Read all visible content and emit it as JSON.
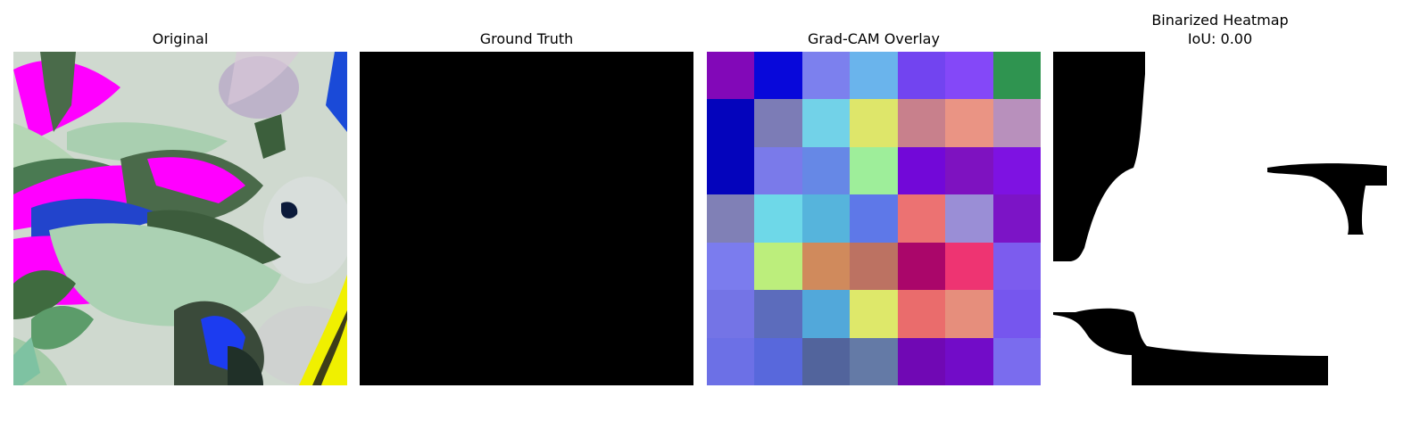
{
  "panels": {
    "original": {
      "title": "Original"
    },
    "ground_truth": {
      "title": "Ground Truth"
    },
    "gradcam": {
      "title": "Grad-CAM Overlay",
      "cells": [
        [
          "#8208b8",
          "#0808da",
          "#7c80ee",
          "#6ab4ec",
          "#7244f0",
          "#8448f8",
          "#2f9450"
        ],
        [
          "#0404bc",
          "#7c7cb6",
          "#72d2e8",
          "#dee66a",
          "#c8808c",
          "#ea9484",
          "#b890bc"
        ],
        [
          "#0404bc",
          "#7a7aea",
          "#6688e6",
          "#9eee9a",
          "#7208d8",
          "#7e12c0",
          "#7e12e2"
        ],
        [
          "#8080b6",
          "#6ed8e8",
          "#56b4dc",
          "#5e78e8",
          "#ec7272",
          "#9a8ed6",
          "#7c14c6"
        ],
        [
          "#7b7cee",
          "#bcee7c",
          "#d08a5c",
          "#bc7262",
          "#aa066a",
          "#ee3472",
          "#7c5cee"
        ],
        [
          "#7474e6",
          "#5c6cbc",
          "#52a8da",
          "#dee86a",
          "#ea6c6c",
          "#e68e7c",
          "#7656ee"
        ],
        [
          "#6c70e6",
          "#5868dc",
          "#52649c",
          "#647aa6",
          "#7008b4",
          "#720cc8",
          "#7a6cee"
        ]
      ]
    },
    "binarized": {
      "title_line1": "Binarized Heatmap",
      "title_line2": "IoU: 0.00"
    }
  },
  "colors": {
    "mask_foreground": "#ffffff",
    "mask_background": "#000000"
  }
}
